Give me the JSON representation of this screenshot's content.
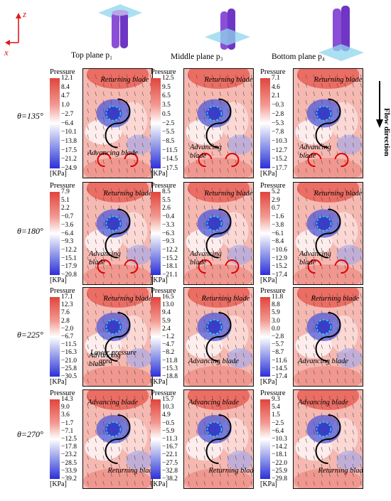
{
  "axes_icon": {
    "z": "z",
    "x": "x"
  },
  "headers": [
    {
      "label": "Top plane p₁"
    },
    {
      "label": "Middle plane p₃"
    },
    {
      "label": "Bottom plane p₄"
    }
  ],
  "flow_direction": "Flow direction",
  "rows": [
    {
      "theta": "θ=135°"
    },
    {
      "theta": "θ=180°"
    },
    {
      "theta": "θ=225°"
    },
    {
      "theta": "θ=270°"
    }
  ],
  "colorbar": {
    "title": "Pressure",
    "unit": "[KPa]"
  },
  "panels": [
    [
      {
        "ticks": [
          "12.1",
          "8.4",
          "4.7",
          "1.0",
          "−2.7",
          "−6.4",
          "−10.1",
          "−13.8",
          "−17.5",
          "−21.2",
          "−24.9"
        ],
        "labels": [
          "Returning blade",
          "Advancing blade"
        ]
      },
      {
        "ticks": [
          "12.5",
          "9.5",
          "6.5",
          "3.5",
          "0.5",
          "−2.5",
          "−5.5",
          "−8.5",
          "−11.5",
          "−14.5",
          "−17.5"
        ],
        "labels": [
          "Returning blade",
          "Advancing",
          "blade"
        ]
      },
      {
        "ticks": [
          "7.1",
          "4.6",
          "2.1",
          "−0.3",
          "−2.8",
          "−5.3",
          "−7.8",
          "−10.3",
          "−12.7",
          "−15.2",
          "−17.7"
        ],
        "labels": [
          "Returning blade",
          "Advancing",
          "blade"
        ]
      }
    ],
    [
      {
        "ticks": [
          "7.9",
          "5.1",
          "2.2",
          "−0.7",
          "−3.6",
          "−6.4",
          "−9.3",
          "−12.2",
          "−15.1",
          "−17.9",
          "−20.8"
        ],
        "labels": [
          "Returning blade",
          "Advancing",
          "blade"
        ]
      },
      {
        "ticks": [
          "8.5",
          "5.5",
          "2.6",
          "−0.4",
          "−3.3",
          "−6.3",
          "−9.3",
          "−12.2",
          "−15.2",
          "−18.1",
          "−21.1"
        ],
        "labels": [
          "Returning blade",
          "Advancing",
          "blade"
        ]
      },
      {
        "ticks": [
          "5.2",
          "2.9",
          "0.7",
          "−1.6",
          "−3.8",
          "−6.1",
          "−8.4",
          "−10.6",
          "−12.9",
          "−15.2",
          "−17.4"
        ],
        "labels": [
          "Returning blade",
          "Advancing",
          "blade"
        ]
      }
    ],
    [
      {
        "ticks": [
          "17.1",
          "12.3",
          "7.6",
          "2.8",
          "−2.0",
          "−6.7",
          "−11.5",
          "−16.3",
          "−21.0",
          "−25.8",
          "−30.5"
        ],
        "labels": [
          "Returning blade",
          "Advancing",
          "blade",
          "Lower pressure",
          "area"
        ]
      },
      {
        "ticks": [
          "16.5",
          "13.0",
          "9.4",
          "5.9",
          "2.4",
          "−1.2",
          "−4.7",
          "−8.2",
          "−11.8",
          "−15.3",
          "−18.8"
        ],
        "labels": [
          "Returning blade",
          "Advancing blade"
        ]
      },
      {
        "ticks": [
          "11.8",
          "8.8",
          "5.9",
          "3.0",
          "0.0",
          "−2.8",
          "−5.7",
          "−8.7",
          "−11.6",
          "−14.5",
          "−17.4"
        ],
        "labels": [
          "Returning blade",
          "Advancing blade"
        ]
      }
    ],
    [
      {
        "ticks": [
          "14.3",
          "9.0",
          "3.6",
          "−1.7",
          "−7.1",
          "−12.5",
          "−17.8",
          "−23.2",
          "−28.5",
          "−33.9",
          "−39.2"
        ],
        "labels": [
          "Advancing blade",
          "Returning blade"
        ]
      },
      {
        "ticks": [
          "15.7",
          "10.3",
          "4.9",
          "−0.5",
          "−5.9",
          "−11.3",
          "−16.7",
          "−22.1",
          "−27.5",
          "−32.8",
          "−38.2"
        ],
        "labels": [
          "Advancing blade",
          "Returning blade"
        ]
      },
      {
        "ticks": [
          "9.3",
          "5.4",
          "1.5",
          "−2.5",
          "−6.4",
          "−10.3",
          "−14.2",
          "−18.1",
          "−22.0",
          "−25.9",
          "−29.8"
        ],
        "labels": [
          "Advancing blade",
          "Returning blade"
        ]
      }
    ]
  ]
}
